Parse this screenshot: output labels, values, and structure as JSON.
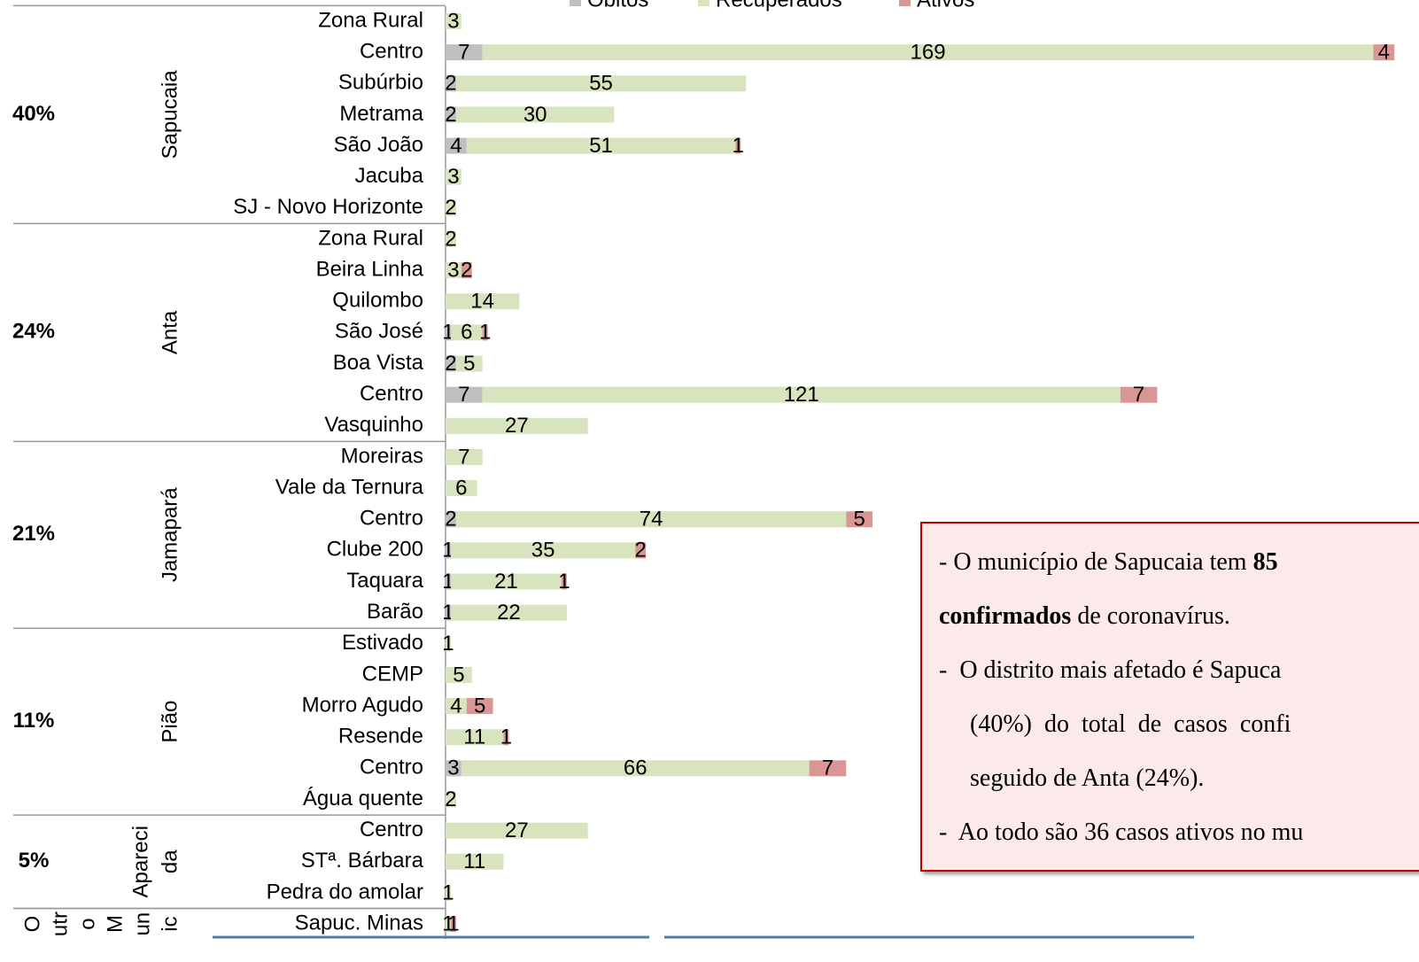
{
  "chart_data": {
    "type": "stacked-barh",
    "groups": [
      {
        "name": [
          "Sapucaia"
        ],
        "share": "40%",
        "categories": [
          "Zona Rural",
          "Centro",
          "Subúrbio",
          "Metrama",
          "São João",
          "Jacuba",
          "SJ - Novo Horizonte"
        ]
      },
      {
        "name": [
          "Anta"
        ],
        "share": "24%",
        "categories": [
          "Zona Rural",
          "Beira Linha",
          "Quilombo",
          "São José",
          "Boa Vista",
          "Centro",
          "Vasquinho"
        ]
      },
      {
        "name": [
          "Jamapará"
        ],
        "share": "21%",
        "categories": [
          "Moreiras",
          "Vale da Ternura",
          "Centro",
          "Clube 200",
          "Taquara",
          "Barão"
        ]
      },
      {
        "name": [
          "Pião"
        ],
        "share": "11%",
        "categories": [
          "Estivado",
          "CEMP",
          "Morro Agudo",
          "Resende",
          "Centro",
          "Água quente"
        ]
      },
      {
        "name": [
          "Apareci",
          "da"
        ],
        "share": "5%",
        "categories": [
          "Centro",
          "STª. Bárbara",
          "Pedra do amolar"
        ]
      },
      {
        "name": [
          "O",
          "utr",
          "o",
          "M",
          "un",
          "ic"
        ],
        "categories": [
          "Sapuc. Minas"
        ]
      }
    ],
    "series": [
      {
        "name": "Óbitos",
        "color": "#bfbfbf",
        "values": [
          null,
          7,
          2,
          2,
          4,
          null,
          null,
          null,
          null,
          null,
          1,
          2,
          7,
          null,
          null,
          null,
          2,
          1,
          1,
          1,
          null,
          null,
          null,
          null,
          3,
          null,
          null,
          null,
          null,
          null
        ]
      },
      {
        "name": "Recuperados",
        "color": "#d7e4bd",
        "values": [
          3,
          169,
          55,
          30,
          51,
          3,
          2,
          2,
          3,
          14,
          6,
          5,
          121,
          27,
          7,
          6,
          74,
          35,
          21,
          22,
          1,
          5,
          4,
          11,
          66,
          2,
          27,
          11,
          1,
          1
        ]
      },
      {
        "name": "Ativos",
        "color": "#d99694",
        "values": [
          null,
          4,
          null,
          null,
          1,
          null,
          null,
          null,
          2,
          null,
          1,
          null,
          7,
          null,
          null,
          null,
          5,
          2,
          1,
          null,
          null,
          null,
          5,
          1,
          7,
          null,
          null,
          null,
          null,
          1
        ]
      }
    ],
    "xlim": [
      0,
      185
    ],
    "note": {
      "lines": [
        [
          {
            "text": "- O município de Sapucaia tem "
          },
          {
            "text": "85",
            "bold": true
          }
        ],
        [
          {
            "text": "confirmados",
            "bold": true
          },
          {
            "text": " de coronavírus."
          }
        ],
        [
          {
            "text": "-  O distrito mais afetado é Sapuca"
          }
        ],
        [
          {
            "text": "(40%)  do  total  de  casos  confi"
          }
        ],
        [
          {
            "text": "seguido de Anta (24%)."
          }
        ],
        [
          {
            "text": "-  Ao todo são 36 casos ativos no mu"
          }
        ]
      ]
    }
  }
}
